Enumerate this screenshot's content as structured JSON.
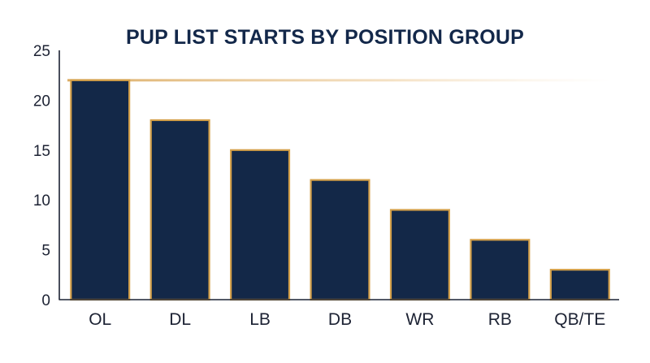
{
  "chart_data": {
    "type": "bar",
    "title": "PUP LIST STARTS BY POSITION GROUP",
    "xlabel": "",
    "ylabel": "",
    "categories": [
      "OL",
      "DL",
      "LB",
      "DB",
      "WR",
      "RB",
      "QB/TE"
    ],
    "values": [
      22,
      18,
      15,
      12,
      9,
      6,
      3
    ],
    "ylim": [
      0,
      25
    ],
    "yticks": [
      0,
      5,
      10,
      15,
      20,
      25
    ],
    "grid": false,
    "reference_line": {
      "value": 22,
      "style": "faded gold horizontal line"
    },
    "colors": {
      "bar_fill": "#132848",
      "bar_outline": "#d4a04a",
      "axis": "#1c2233",
      "reference_line": "#e8c48c",
      "title": "#13284a"
    }
  }
}
